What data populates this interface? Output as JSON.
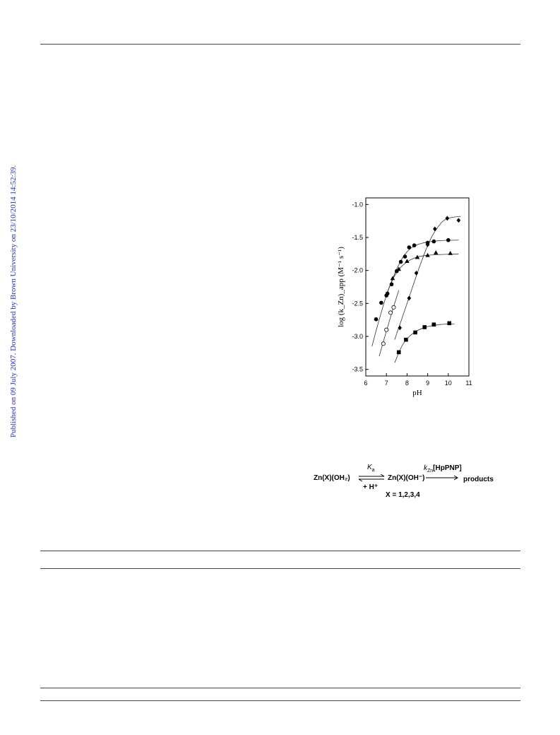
{
  "watermark": "Published on 09 July 2007. Downloaded by Brown University on 23/10/2014 14:52:39.",
  "chart_data": {
    "type": "scatter",
    "xlabel": "pH",
    "ylabel": "log (k_Zn)_app (M⁻¹ s⁻¹)",
    "xlim": [
      6,
      11
    ],
    "ylim": [
      -3.6,
      -0.9
    ],
    "xticks": [
      "6",
      "7",
      "8",
      "9",
      "10",
      "11"
    ],
    "yticks": [
      "-1.0",
      "-1.5",
      "-2.0",
      "-2.5",
      "-3.0",
      "-3.5"
    ],
    "series": [
      {
        "marker": "filled-circle",
        "points": [
          [
            6.5,
            -2.74
          ],
          [
            6.75,
            -2.49
          ],
          [
            7.0,
            -2.38
          ],
          [
            7.05,
            -2.35
          ],
          [
            7.25,
            -2.21
          ],
          [
            7.5,
            -2.01
          ],
          [
            7.7,
            -1.87
          ],
          [
            7.9,
            -1.79
          ],
          [
            8.1,
            -1.65
          ],
          [
            8.35,
            -1.62
          ],
          [
            9.0,
            -1.58
          ],
          [
            9.3,
            -1.56
          ],
          [
            10.0,
            -1.54
          ]
        ],
        "curve": [
          [
            6.3,
            -3.15
          ],
          [
            6.6,
            -2.8
          ],
          [
            7.0,
            -2.38
          ],
          [
            7.4,
            -2.05
          ],
          [
            7.8,
            -1.8
          ],
          [
            8.2,
            -1.66
          ],
          [
            8.7,
            -1.59
          ],
          [
            9.5,
            -1.55
          ],
          [
            10.5,
            -1.54
          ]
        ]
      },
      {
        "marker": "filled-triangle",
        "points": [
          [
            7.3,
            -2.12
          ],
          [
            7.6,
            -1.98
          ],
          [
            8.0,
            -1.86
          ],
          [
            8.5,
            -1.8
          ],
          [
            9.0,
            -1.77
          ],
          [
            9.4,
            -1.73
          ],
          [
            10.1,
            -1.74
          ]
        ],
        "curve": [
          [
            7.0,
            -2.36
          ],
          [
            7.4,
            -2.08
          ],
          [
            7.8,
            -1.92
          ],
          [
            8.3,
            -1.82
          ],
          [
            9.0,
            -1.77
          ],
          [
            10.5,
            -1.75
          ]
        ]
      },
      {
        "marker": "open-circle",
        "points": [
          [
            6.85,
            -3.11
          ],
          [
            7.0,
            -2.9
          ],
          [
            7.2,
            -2.64
          ],
          [
            7.35,
            -2.56
          ]
        ],
        "curve": [
          [
            6.65,
            -3.3
          ],
          [
            7.0,
            -2.92
          ],
          [
            7.35,
            -2.55
          ],
          [
            7.6,
            -2.3
          ]
        ]
      },
      {
        "marker": "filled-diamond",
        "points": [
          [
            7.65,
            -2.87
          ],
          [
            8.1,
            -2.42
          ],
          [
            8.45,
            -2.04
          ],
          [
            9.0,
            -1.61
          ],
          [
            9.35,
            -1.37
          ],
          [
            9.95,
            -1.21
          ],
          [
            10.5,
            -1.24
          ]
        ],
        "curve": [
          [
            7.4,
            -3.05
          ],
          [
            8.0,
            -2.5
          ],
          [
            8.6,
            -1.95
          ],
          [
            9.1,
            -1.55
          ],
          [
            9.6,
            -1.3
          ],
          [
            10.0,
            -1.21
          ],
          [
            10.6,
            -1.18
          ]
        ]
      },
      {
        "marker": "filled-square",
        "points": [
          [
            7.6,
            -3.24
          ],
          [
            7.95,
            -3.05
          ],
          [
            8.4,
            -2.94
          ],
          [
            8.85,
            -2.86
          ],
          [
            9.3,
            -2.82
          ],
          [
            10.05,
            -2.8
          ]
        ],
        "curve": [
          [
            7.4,
            -3.4
          ],
          [
            7.8,
            -3.12
          ],
          [
            8.3,
            -2.95
          ],
          [
            8.9,
            -2.86
          ],
          [
            9.6,
            -2.82
          ],
          [
            10.3,
            -2.81
          ]
        ]
      }
    ]
  },
  "scheme": {
    "reactant": "Zn(X)(OH₂)",
    "ka": "K",
    "ka_sub": "a",
    "proton": "+ H⁺",
    "hydroxide": "Zn(X)(OH⁻)",
    "rate_k": "k",
    "rate_sub": "Zn",
    "rate_substrate": "[HpPNP]",
    "products": "products",
    "x_values": "X = 1,2,3,4"
  }
}
